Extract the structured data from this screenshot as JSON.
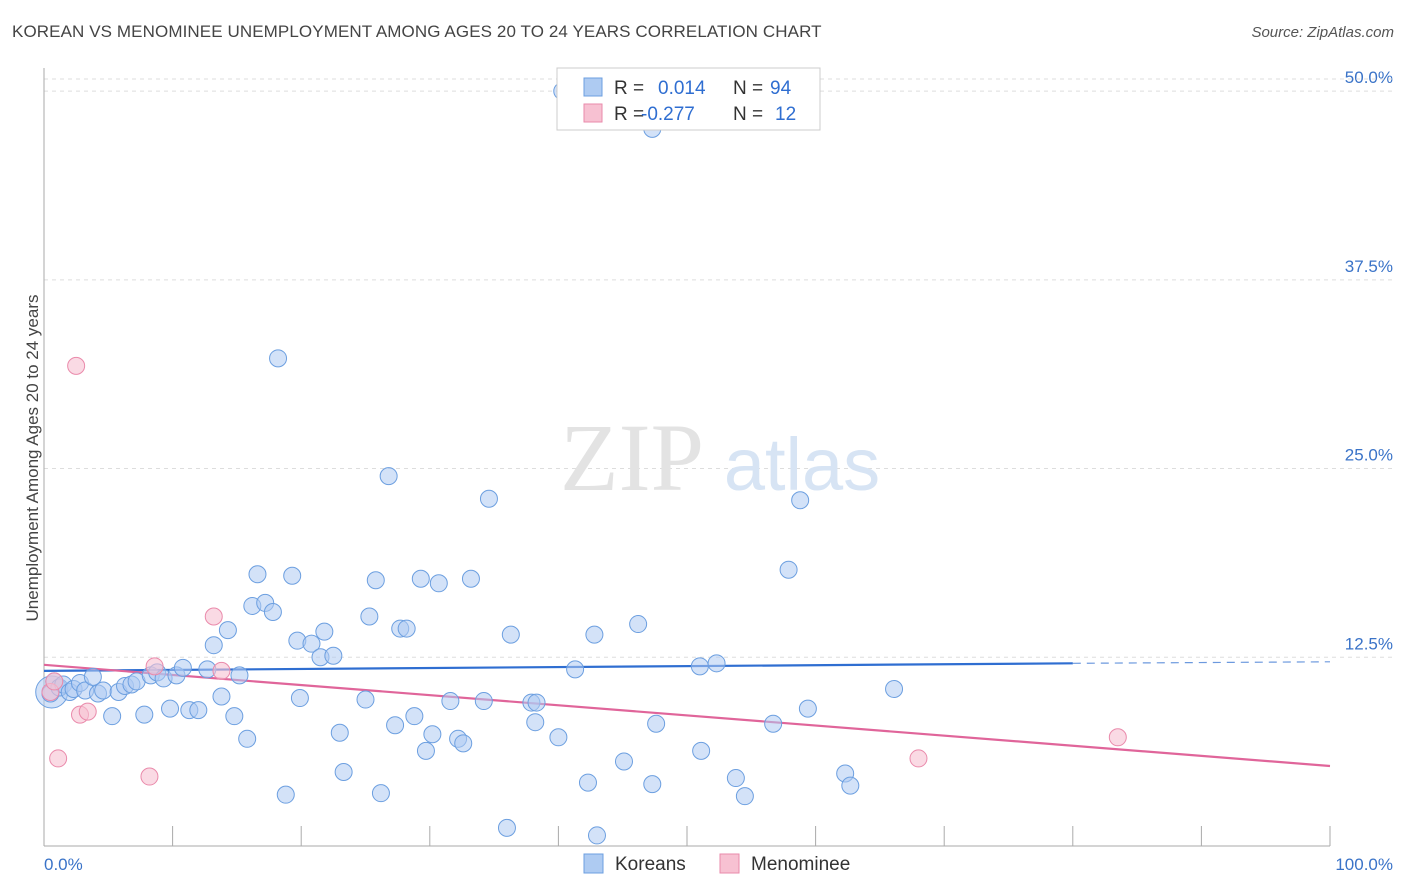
{
  "title": "KOREAN VS MENOMINEE UNEMPLOYMENT AMONG AGES 20 TO 24 YEARS CORRELATION CHART",
  "source": "Source: ZipAtlas.com",
  "watermark": {
    "zip": "ZIP",
    "atlas": "atlas"
  },
  "legend": {
    "koreans": {
      "r_label": "R =",
      "r_value": "0.014",
      "n_label": "N =",
      "n_value": "94"
    },
    "menominee": {
      "r_label": "R =",
      "r_value": "-0.277",
      "n_label": "N =",
      "n_value": "12"
    }
  },
  "bottom_legend": [
    "Koreans",
    "Menominee"
  ],
  "colors": {
    "korean_fill": "#aecbf2",
    "korean_stroke": "#6c9fe0",
    "korean_line": "#2f6ed1",
    "menominee_fill": "#f7c1d2",
    "menominee_stroke": "#ea8aab",
    "menominee_line": "#e0659a",
    "grid": "#dddddd",
    "axis_text": "#3a73c8"
  },
  "chart_data": {
    "type": "scatter",
    "xlabel": "",
    "ylabel": "Unemployment Among Ages 20 to 24 years",
    "xlim": [
      0,
      100
    ],
    "ylim": [
      0,
      51
    ],
    "x_tick_labels": [
      "0.0%",
      "100.0%"
    ],
    "y_ticks": [
      12.5,
      25.0,
      37.5,
      50.0
    ],
    "y_tick_labels": [
      "12.5%",
      "25.0%",
      "37.5%",
      "50.0%"
    ],
    "grid": true,
    "legend_position": "top-center",
    "series": [
      {
        "name": "Koreans",
        "r": 0.014,
        "n": 94,
        "trend": {
          "x": [
            0,
            80
          ],
          "y": [
            11.6,
            12.1
          ],
          "dashed_extension_to_x": 100,
          "dashed_end_y": 12.2
        },
        "points": [
          [
            0.5,
            10.1
          ],
          [
            0.8,
            10.9
          ],
          [
            1.2,
            10.5
          ],
          [
            1.5,
            10.7
          ],
          [
            2,
            10.2
          ],
          [
            2.3,
            10.4
          ],
          [
            2.8,
            10.8
          ],
          [
            3.2,
            10.3
          ],
          [
            3.8,
            11.2
          ],
          [
            4.2,
            10.1
          ],
          [
            4.6,
            10.3
          ],
          [
            5.3,
            8.6
          ],
          [
            5.8,
            10.2
          ],
          [
            6.3,
            10.6
          ],
          [
            6.8,
            10.7
          ],
          [
            7.2,
            10.9
          ],
          [
            7.8,
            8.7
          ],
          [
            8.3,
            11.3
          ],
          [
            8.8,
            11.5
          ],
          [
            9.3,
            11.1
          ],
          [
            9.8,
            9.1
          ],
          [
            10.3,
            11.3
          ],
          [
            10.8,
            11.8
          ],
          [
            11.3,
            9.0
          ],
          [
            12,
            9.0
          ],
          [
            12.7,
            11.7
          ],
          [
            13.2,
            13.3
          ],
          [
            13.8,
            9.9
          ],
          [
            14.3,
            14.3
          ],
          [
            14.8,
            8.6
          ],
          [
            15.2,
            11.3
          ],
          [
            15.8,
            7.1
          ],
          [
            16.2,
            15.9
          ],
          [
            16.6,
            18.0
          ],
          [
            17.2,
            16.1
          ],
          [
            17.8,
            15.5
          ],
          [
            18.2,
            32.3
          ],
          [
            18.8,
            3.4
          ],
          [
            19.3,
            17.9
          ],
          [
            19.7,
            13.6
          ],
          [
            19.9,
            9.8
          ],
          [
            20.8,
            13.4
          ],
          [
            21.5,
            12.5
          ],
          [
            21.8,
            14.2
          ],
          [
            22.5,
            12.6
          ],
          [
            23,
            7.5
          ],
          [
            23.3,
            4.9
          ],
          [
            25,
            9.7
          ],
          [
            25.3,
            15.2
          ],
          [
            25.8,
            17.6
          ],
          [
            26.2,
            3.5
          ],
          [
            26.8,
            24.5
          ],
          [
            27.3,
            8.0
          ],
          [
            27.7,
            14.4
          ],
          [
            28.2,
            14.4
          ],
          [
            28.8,
            8.6
          ],
          [
            29.3,
            17.7
          ],
          [
            29.7,
            6.3
          ],
          [
            30.2,
            7.4
          ],
          [
            30.7,
            17.4
          ],
          [
            31.6,
            9.6
          ],
          [
            32.2,
            7.1
          ],
          [
            32.6,
            6.8
          ],
          [
            33.2,
            17.7
          ],
          [
            34.2,
            9.6
          ],
          [
            34.6,
            23.0
          ],
          [
            36,
            1.2
          ],
          [
            36.3,
            14.0
          ],
          [
            37.9,
            9.5
          ],
          [
            38.2,
            8.2
          ],
          [
            38.3,
            9.5
          ],
          [
            40,
            7.2
          ],
          [
            41.3,
            11.7
          ],
          [
            42.3,
            4.2
          ],
          [
            42.8,
            14.0
          ],
          [
            43,
            0.7
          ],
          [
            45.1,
            5.6
          ],
          [
            46.2,
            14.7
          ],
          [
            47.3,
            4.1
          ],
          [
            47.6,
            8.1
          ],
          [
            51,
            11.9
          ],
          [
            51.1,
            6.3
          ],
          [
            52.3,
            12.1
          ],
          [
            53.8,
            4.5
          ],
          [
            54.5,
            3.3
          ],
          [
            56.7,
            8.1
          ],
          [
            57.9,
            18.3
          ],
          [
            58.8,
            22.9
          ],
          [
            59.4,
            9.1
          ],
          [
            62.3,
            4.8
          ],
          [
            62.7,
            4.0
          ],
          [
            66.1,
            10.4
          ],
          [
            40.3,
            50.0
          ],
          [
            47.3,
            47.5
          ]
        ]
      },
      {
        "name": "Menominee",
        "r": -0.277,
        "n": 12,
        "trend": {
          "x": [
            0,
            100
          ],
          "y": [
            12.0,
            5.3
          ]
        },
        "points": [
          [
            0.5,
            10.2
          ],
          [
            0.8,
            10.9
          ],
          [
            1.1,
            5.8
          ],
          [
            2.5,
            31.8
          ],
          [
            2.8,
            8.7
          ],
          [
            3.4,
            8.9
          ],
          [
            8.2,
            4.6
          ],
          [
            8.6,
            11.9
          ],
          [
            13.2,
            15.2
          ],
          [
            13.8,
            11.6
          ],
          [
            68,
            5.8
          ],
          [
            83.5,
            7.2
          ]
        ]
      }
    ]
  }
}
